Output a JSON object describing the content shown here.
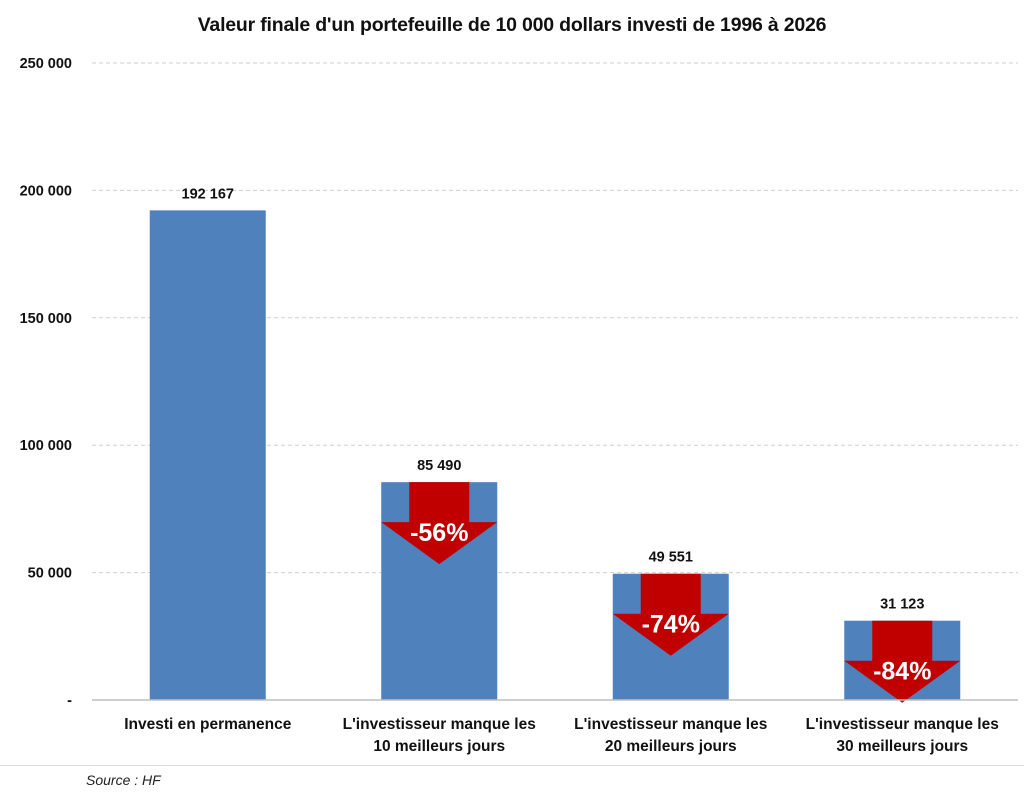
{
  "chart_data": {
    "type": "bar",
    "title": "Valeur finale d'un portefeuille de 10 000 dollars investi de 1996 à 2026",
    "categories": [
      [
        "Investi en permanence"
      ],
      [
        "L'investisseur manque les",
        "10 meilleurs jours"
      ],
      [
        "L'investisseur manque les",
        "20 meilleurs jours"
      ],
      [
        "L'investisseur manque les",
        "30 meilleurs jours"
      ]
    ],
    "values": [
      192167,
      85490,
      49551,
      31123
    ],
    "data_labels": [
      "192 167",
      "85 490",
      "49 551",
      "31 123"
    ],
    "annotations": [
      null,
      "-56%",
      "-74%",
      "-84%"
    ],
    "y_ticks": [
      0,
      50000,
      100000,
      150000,
      200000,
      250000
    ],
    "y_tick_labels": [
      "-",
      "50 000",
      "100 000",
      "150 000",
      "200 000",
      "250 000"
    ],
    "ylim": [
      0,
      250000
    ],
    "xlabel": "",
    "ylabel": "",
    "grid": true,
    "colors": {
      "bar": "#4f81bd",
      "arrow": "#c00000",
      "grid": "#cfcfcf",
      "axis": "#bfbfbf"
    }
  },
  "footer": {
    "source": "Source : HF"
  }
}
